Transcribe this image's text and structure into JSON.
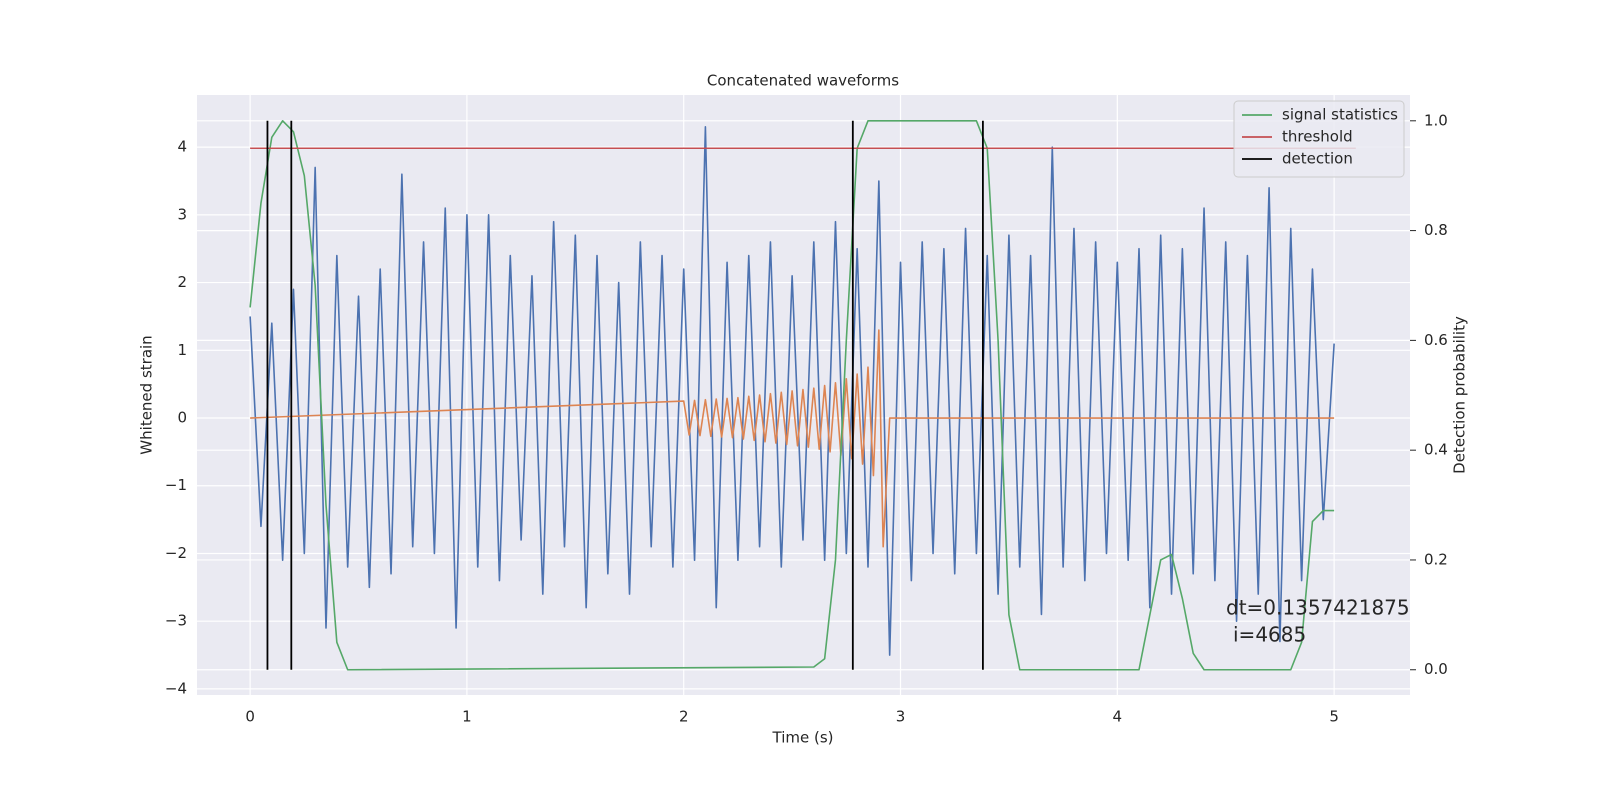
{
  "chart_data": {
    "type": "line",
    "title": "Concatenated waveforms",
    "x_label": "Time (s)",
    "y_label": "Whitened strain",
    "y2_label": "Detection probability",
    "xlim": [
      -0.245,
      5.35
    ],
    "xticks": [
      0,
      1,
      2,
      3,
      4,
      5
    ],
    "ylim": [
      -4.09,
      4.77
    ],
    "yticks": [
      {
        "value": -4,
        "label": "−4"
      },
      {
        "value": -3,
        "label": "−3"
      },
      {
        "value": -2,
        "label": "−2"
      },
      {
        "value": -1,
        "label": "−1"
      },
      0,
      1,
      2,
      3,
      4
    ],
    "y2lim": [
      -0.046,
      1.047
    ],
    "y2ticks": [
      {
        "value": 0,
        "label": "0.0"
      },
      {
        "value": 0.2,
        "label": "0.2"
      },
      {
        "value": 0.4,
        "label": "0.4"
      },
      {
        "value": 0.6,
        "label": "0.6"
      },
      {
        "value": 0.8,
        "label": "0.8"
      },
      {
        "value": 1,
        "label": "1.0"
      }
    ],
    "grid": true,
    "legend": "upper right",
    "series": [
      {
        "color": "#4c72b0",
        "x": [
          0,
          0.05,
          0.1,
          0.15,
          0.2,
          0.25,
          0.3,
          0.35,
          0.4,
          0.45,
          0.5,
          0.55,
          0.6,
          0.65,
          0.7,
          0.75,
          0.8,
          0.85,
          0.9,
          0.95,
          1,
          1.05,
          1.1,
          1.15,
          1.2,
          1.25,
          1.3,
          1.35,
          1.4,
          1.45,
          1.5,
          1.55,
          1.6,
          1.65,
          1.7,
          1.75,
          1.8,
          1.85,
          1.9,
          1.95,
          2,
          2.05,
          2.1,
          2.15,
          2.2,
          2.25,
          2.3,
          2.35,
          2.4,
          2.45,
          2.5,
          2.55,
          2.6,
          2.65,
          2.7,
          2.75,
          2.8,
          2.85,
          2.9,
          2.95,
          3,
          3.05,
          3.1,
          3.15,
          3.2,
          3.25,
          3.3,
          3.35,
          3.4,
          3.45,
          3.5,
          3.55,
          3.6,
          3.65,
          3.7,
          3.75,
          3.8,
          3.85,
          3.9,
          3.95,
          4,
          4.05,
          4.1,
          4.15,
          4.2,
          4.25,
          4.3,
          4.35,
          4.4,
          4.45,
          4.5,
          4.55,
          4.6,
          4.65,
          4.7,
          4.75,
          4.8,
          4.85,
          4.9,
          4.95,
          5
        ],
        "values": [
          1.5,
          -1.6,
          1.4,
          -2.1,
          1.9,
          -2.0,
          3.7,
          -3.1,
          2.4,
          -2.2,
          1.8,
          -2.5,
          2.2,
          -2.3,
          3.6,
          -1.9,
          2.6,
          -2.0,
          3.1,
          -3.1,
          3.0,
          -2.2,
          3.0,
          -2.4,
          2.4,
          -1.8,
          2.1,
          -2.6,
          2.9,
          -1.9,
          2.7,
          -2.8,
          2.4,
          -2.3,
          2.0,
          -2.6,
          2.6,
          -1.9,
          2.4,
          -2.2,
          2.2,
          -2.1,
          4.3,
          -2.8,
          2.3,
          -2.1,
          2.4,
          -1.9,
          2.6,
          -2.2,
          2.1,
          -1.8,
          2.6,
          -2.1,
          2.9,
          -2.0,
          2.5,
          -2.2,
          3.5,
          -3.5,
          2.3,
          -2.4,
          2.6,
          -2.0,
          2.5,
          -2.3,
          2.8,
          -2.0,
          2.4,
          -2.6,
          2.7,
          -2.2,
          2.4,
          -2.9,
          4.0,
          -2.2,
          2.8,
          -2.4,
          2.6,
          -2.0,
          2.3,
          -2.1,
          2.5,
          -2.8,
          2.7,
          -2.6,
          2.5,
          -2.3,
          3.1,
          -2.4,
          2.6,
          -3.0,
          2.4,
          -2.6,
          3.4,
          -3.3,
          2.8,
          -2.4,
          2.2,
          -1.5,
          1.1
        ]
      },
      {
        "color": "#dd8452",
        "x": [
          0,
          2,
          2.025,
          2.05,
          2.075,
          2.1,
          2.125,
          2.15,
          2.175,
          2.2,
          2.225,
          2.25,
          2.275,
          2.3,
          2.325,
          2.35,
          2.375,
          2.4,
          2.425,
          2.45,
          2.475,
          2.5,
          2.525,
          2.55,
          2.575,
          2.6,
          2.625,
          2.65,
          2.675,
          2.7,
          2.725,
          2.75,
          2.775,
          2.8,
          2.825,
          2.85,
          2.875,
          2.9,
          2.92,
          2.95,
          5
        ],
        "values": [
          0,
          0.25,
          -0.25,
          0.26,
          -0.26,
          0.27,
          -0.27,
          0.28,
          -0.28,
          0.29,
          -0.29,
          0.3,
          -0.31,
          0.32,
          -0.33,
          0.34,
          -0.35,
          0.36,
          -0.37,
          0.38,
          -0.39,
          0.4,
          -0.41,
          0.42,
          -0.43,
          0.44,
          -0.46,
          0.48,
          -0.5,
          0.52,
          -0.55,
          0.58,
          -0.6,
          0.65,
          -0.68,
          0.75,
          -0.85,
          1.3,
          -1.9,
          0,
          0
        ]
      },
      {
        "name": "signal statistics",
        "color": "#55a868",
        "axis": "y2",
        "x": [
          0,
          0.05,
          0.1,
          0.15,
          0.2,
          0.25,
          0.3,
          0.35,
          0.4,
          0.45,
          2.6,
          2.65,
          2.7,
          2.75,
          2.8,
          2.85,
          3.35,
          3.4,
          3.45,
          3.5,
          3.55,
          4.1,
          4.15,
          4.2,
          4.25,
          4.3,
          4.35,
          4.4,
          4.8,
          4.85,
          4.9,
          4.95,
          5
        ],
        "values": [
          0.66,
          0.85,
          0.97,
          1.0,
          0.98,
          0.9,
          0.7,
          0.3,
          0.05,
          0.0,
          0.005,
          0.02,
          0.2,
          0.6,
          0.95,
          1.0,
          1.0,
          0.95,
          0.6,
          0.1,
          0.0,
          0.0,
          0.1,
          0.2,
          0.21,
          0.13,
          0.03,
          0.0,
          0.0,
          0.05,
          0.27,
          0.29,
          0.29
        ]
      },
      {
        "name": "threshold",
        "color": "#c44e52",
        "axis": "y2",
        "x": [
          0,
          5.1
        ],
        "values": [
          0.95,
          0.95
        ]
      }
    ],
    "detections": {
      "name": "detection",
      "color": "#000000",
      "x": [
        0.08,
        0.19,
        2.78,
        3.38
      ],
      "span": [
        0,
        1
      ]
    },
    "annotation": [
      "dt=0.1357421875",
      "i=4685"
    ]
  }
}
